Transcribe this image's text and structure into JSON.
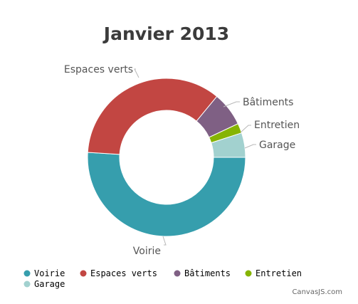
{
  "chart_data": {
    "type": "pie",
    "subtype": "doughnut",
    "title": "Janvier 2013",
    "categories": [
      "Voirie",
      "Espaces verts",
      "Bâtiments",
      "Entretien",
      "Garage"
    ],
    "values": [
      51,
      35,
      7,
      2,
      5
    ],
    "colors": [
      "#369ead",
      "#c24642",
      "#7f6084",
      "#86b402",
      "#a2d1cf"
    ],
    "legend_position": "bottom"
  },
  "credit": "CanvasJS.com"
}
